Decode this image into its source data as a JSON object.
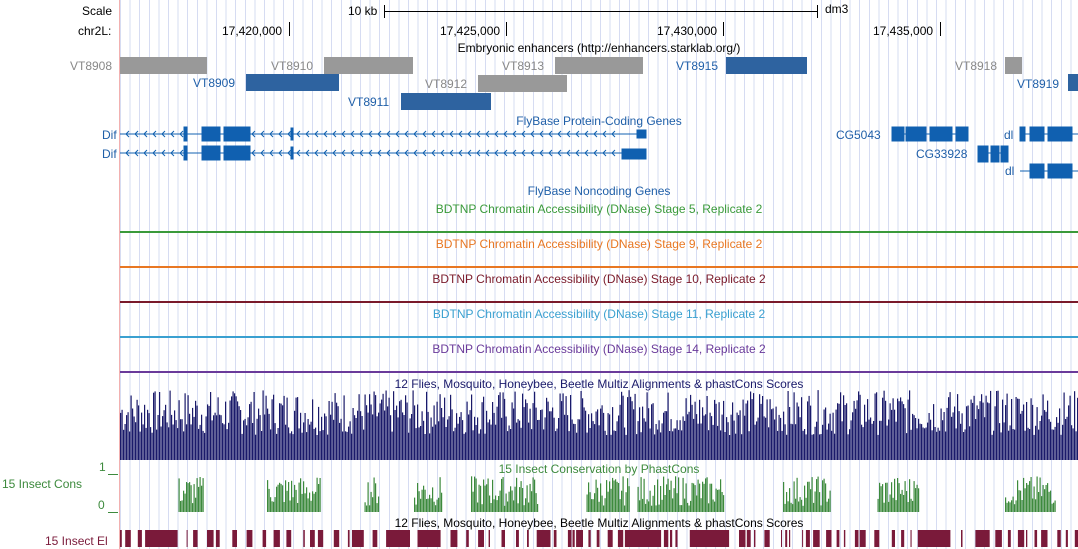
{
  "header": {
    "scale_label": "Scale",
    "scale_bar_label": "10 kb",
    "assembly": "dm3",
    "chrom_label": "chr2L:",
    "positions": [
      "17,420,000",
      "17,425,000",
      "17,430,000",
      "17,435,000"
    ]
  },
  "tracks": {
    "enhancers": {
      "title": "Embryonic enhancers (http://enhancers.starklab.org/)",
      "items": [
        {
          "label": "VT8908",
          "tone": "gray"
        },
        {
          "label": "VT8909",
          "tone": "blue"
        },
        {
          "label": "VT8910",
          "tone": "gray"
        },
        {
          "label": "VT8911",
          "tone": "blue"
        },
        {
          "label": "VT8912",
          "tone": "gray"
        },
        {
          "label": "VT8913",
          "tone": "gray"
        },
        {
          "label": "VT8915",
          "tone": "blue"
        },
        {
          "label": "VT8918",
          "tone": "gray"
        },
        {
          "label": "VT8919",
          "tone": "blue"
        }
      ]
    },
    "protein_genes": {
      "title": "FlyBase Protein-Coding Genes",
      "genes": [
        "Dif",
        "Dif",
        "CG5043",
        "CG33928",
        "dl",
        "dl"
      ]
    },
    "noncoding": {
      "title": "FlyBase Noncoding Genes"
    },
    "dnase": [
      {
        "title": "BDTNP Chromatin Accessibility (DNase) Stage 5, Replicate 2",
        "color": "#3a9a3a"
      },
      {
        "title": "BDTNP Chromatin Accessibility (DNase) Stage 9, Replicate 2",
        "color": "#e87722"
      },
      {
        "title": "BDTNP Chromatin Accessibility (DNase) Stage 10, Replicate 2",
        "color": "#7a1a2a"
      },
      {
        "title": "BDTNP Chromatin Accessibility (DNase) Stage 11, Replicate 2",
        "color": "#3aa0d0"
      },
      {
        "title": "BDTNP Chromatin Accessibility (DNase) Stage 14, Replicate 2",
        "color": "#6a3a9a"
      }
    ],
    "multiz": {
      "title": "12 Flies, Mosquito, Honeybee, Beetle Multiz Alignments & phastCons Scores"
    },
    "cons": {
      "title": "15 Insect Conservation by PhastCons",
      "side_label": "15 Insect Cons",
      "axis_max": "1",
      "axis_min": "0"
    },
    "elements": {
      "title": "12 Flies, Mosquito, Honeybee, Beetle Multiz Alignments & phastCons Scores",
      "side_label": "15 Insect El"
    }
  },
  "colors": {
    "enh_gray": "#999999",
    "enh_blue": "#2e63a0",
    "gene_blue": "#1060b0",
    "multiz": "#1a1a6a",
    "cons": "#3d8a3d",
    "elements": "#7a1a3a"
  }
}
